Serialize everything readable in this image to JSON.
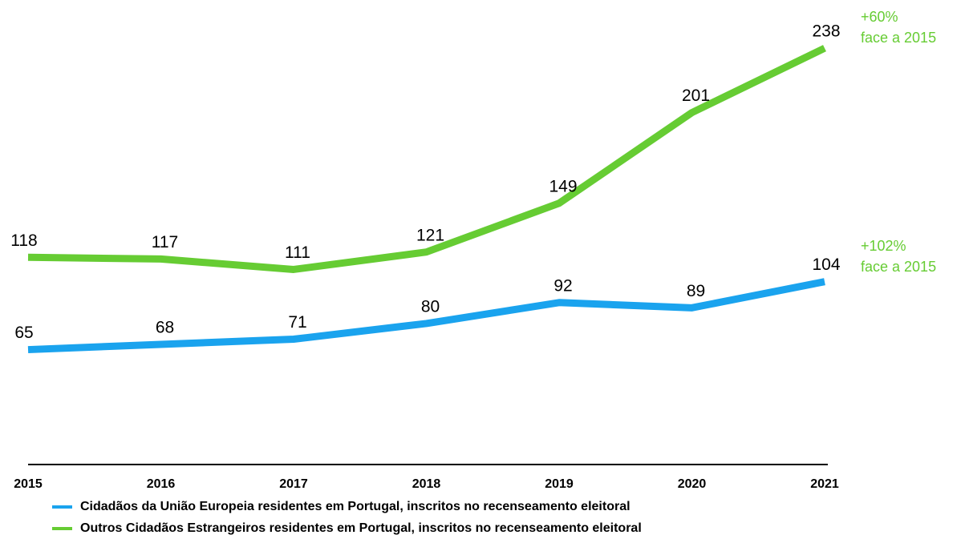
{
  "chart_data": {
    "type": "line",
    "categories": [
      "2015",
      "2016",
      "2017",
      "2018",
      "2019",
      "2020",
      "2021"
    ],
    "series": [
      {
        "name": "Cidadãos da União Europeia residentes em Portugal, inscritos no recenseamento eleitoral",
        "color": "#1aa3ee",
        "values": [
          65,
          68,
          71,
          80,
          92,
          89,
          104
        ]
      },
      {
        "name": "Outros Cidadãos Estrangeiros residentes em Portugal, inscritos no recenseamento eleitoral",
        "color": "#66cc33",
        "values": [
          118,
          117,
          111,
          121,
          149,
          201,
          238
        ]
      }
    ],
    "ylim": [
      0,
      250
    ],
    "annotations": [
      {
        "lines": [
          "+60%",
          "face a 2015"
        ],
        "color": "#66cc33"
      },
      {
        "lines": [
          "+102%",
          "face a 2015"
        ],
        "color": "#66cc33"
      }
    ]
  }
}
